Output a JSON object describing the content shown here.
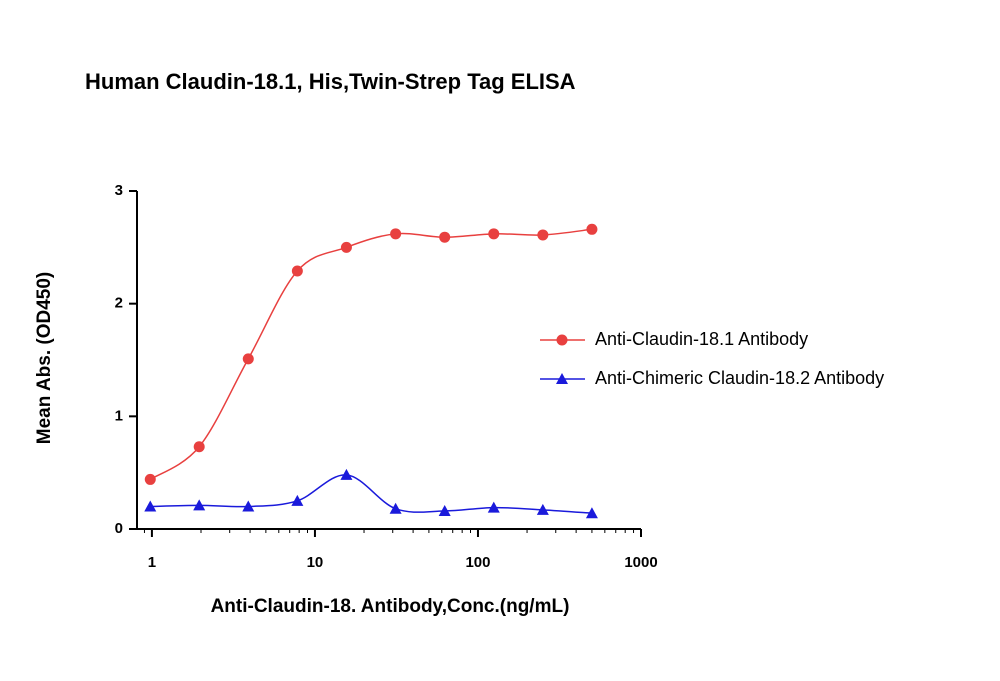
{
  "chart_data": {
    "type": "scatter",
    "title": "Human Claudin-18.1, His,Twin-Strep Tag ELISA",
    "x_label": "Anti-Claudin-18. Antibody,Conc.(ng/mL)",
    "y_label": "Mean Abs. (OD450)",
    "x": [
      0.977,
      1.95,
      3.9,
      7.8,
      15.6,
      31.25,
      62.5,
      125,
      250,
      500
    ],
    "series": [
      {
        "name": "Anti-Claudin-18.1 Antibody",
        "color": "#e8403f",
        "marker": "circle",
        "values": [
          0.44,
          0.73,
          1.51,
          2.29,
          2.5,
          2.62,
          2.59,
          2.62,
          2.61,
          2.66
        ]
      },
      {
        "name": "Anti-Chimeric Claudin-18.2 Antibody",
        "color": "#1a1adb",
        "marker": "triangle",
        "values": [
          0.2,
          0.21,
          0.2,
          0.25,
          0.48,
          0.18,
          0.16,
          0.19,
          0.17,
          0.14
        ]
      }
    ],
    "x_log": true,
    "xlim": [
      0.81,
      1000
    ],
    "xticks": [
      1,
      10,
      100,
      1000
    ],
    "ylim": [
      0,
      3
    ],
    "yticks": [
      0,
      1,
      2,
      3
    ],
    "legend": "right"
  }
}
